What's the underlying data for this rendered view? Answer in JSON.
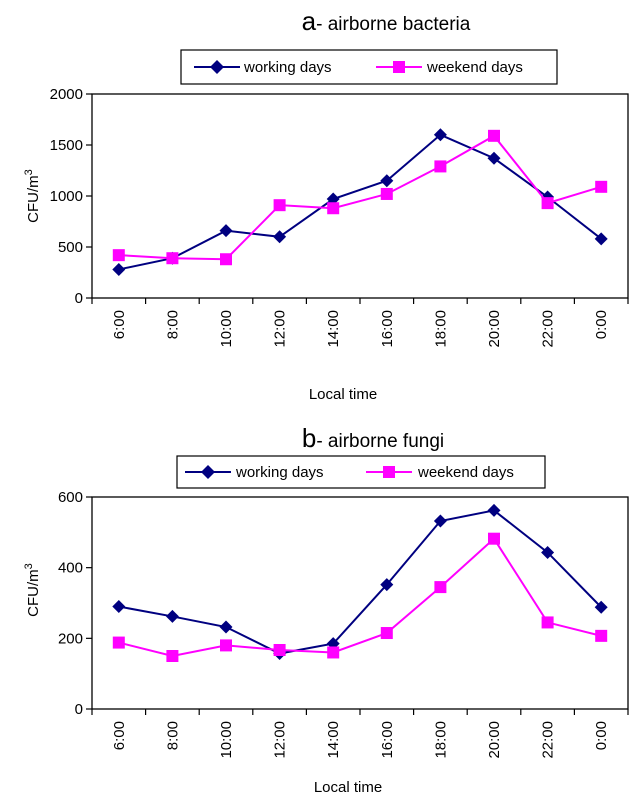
{
  "chart_data": [
    {
      "type": "line",
      "title_letter": "a",
      "title_text": "- airborne bacteria",
      "title": "a- airborne bacteria",
      "xlabel": "Local time",
      "ylabel": "CFU/m",
      "ylabel_sup": "3",
      "categories": [
        "6:00",
        "8:00",
        "10:00",
        "12:00",
        "14:00",
        "16:00",
        "18:00",
        "20:00",
        "22:00",
        "0:00"
      ],
      "ylim": [
        0,
        2000
      ],
      "yticks": [
        0,
        500,
        1000,
        1500,
        2000
      ],
      "grid": false,
      "legend_position": "top",
      "series": [
        {
          "name": "working days",
          "marker": "diamond",
          "color": "#000080",
          "values": [
            280,
            390,
            660,
            600,
            970,
            1150,
            1600,
            1370,
            990,
            580
          ]
        },
        {
          "name": "weekend days",
          "marker": "square",
          "color": "#ff00ff",
          "values": [
            420,
            390,
            380,
            910,
            880,
            1020,
            1290,
            1590,
            930,
            1090
          ]
        }
      ]
    },
    {
      "type": "line",
      "title_letter": "b",
      "title_text": "- airborne fungi",
      "title": "b- airborne fungi",
      "xlabel": "Local time",
      "ylabel": "CFU/m",
      "ylabel_sup": "3",
      "categories": [
        "6:00",
        "8:00",
        "10:00",
        "12:00",
        "14:00",
        "16:00",
        "18:00",
        "20:00",
        "22:00",
        "0:00"
      ],
      "ylim": [
        0,
        600
      ],
      "yticks": [
        0,
        200,
        400,
        600
      ],
      "grid": false,
      "legend_position": "top",
      "series": [
        {
          "name": "working days",
          "marker": "diamond",
          "color": "#000080",
          "values": [
            290,
            262,
            232,
            157,
            185,
            352,
            532,
            562,
            443,
            288
          ]
        },
        {
          "name": "weekend days",
          "marker": "square",
          "color": "#ff00ff",
          "values": [
            188,
            150,
            180,
            167,
            160,
            215,
            345,
            482,
            245,
            207
          ]
        }
      ]
    }
  ]
}
